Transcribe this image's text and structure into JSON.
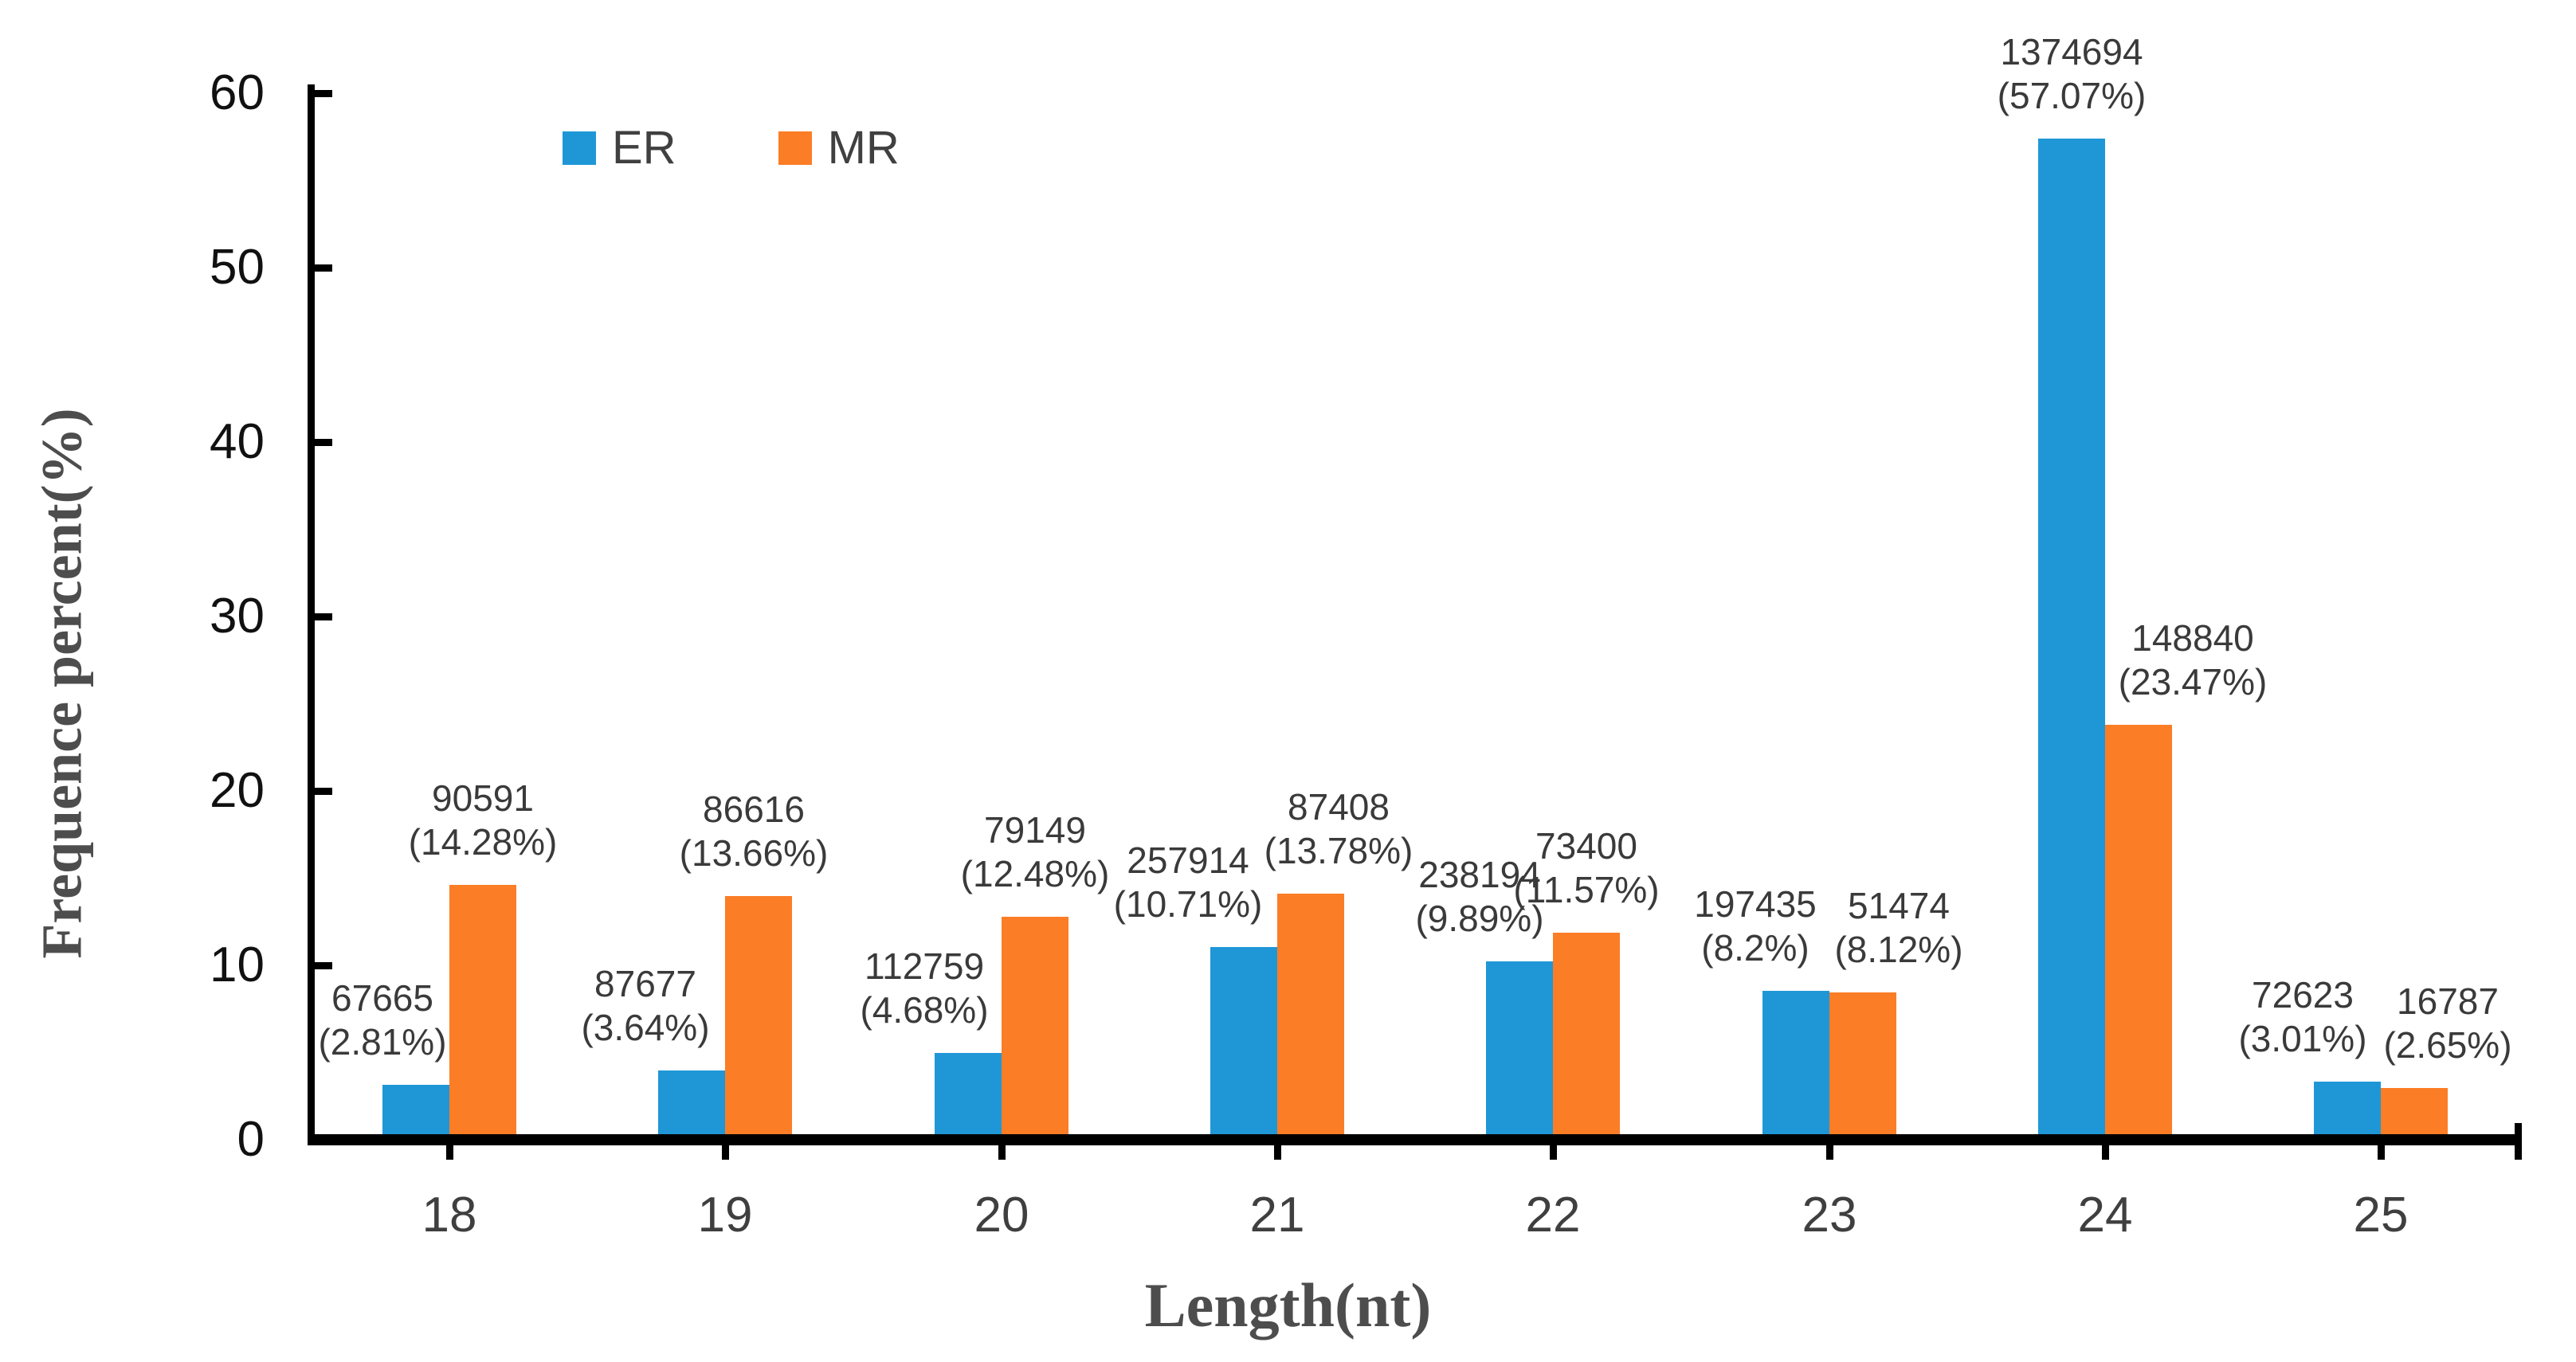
{
  "chart_data": {
    "type": "bar",
    "title": "",
    "xlabel": "Length(nt)",
    "ylabel": "Frequence percent(%)",
    "categories": [
      "18",
      "19",
      "20",
      "21",
      "22",
      "23",
      "24",
      "25"
    ],
    "series": [
      {
        "name": "ER",
        "color": "#1F97D7",
        "counts": [
          67665,
          87677,
          112759,
          257914,
          238194,
          197435,
          1374694,
          72623
        ],
        "percents": [
          2.81,
          3.64,
          4.68,
          10.71,
          9.89,
          8.2,
          57.07,
          3.01
        ]
      },
      {
        "name": "MR",
        "color": "#FB7D26",
        "counts": [
          90591,
          86616,
          79149,
          87408,
          73400,
          51474,
          148840,
          16787
        ],
        "percents": [
          14.28,
          13.66,
          12.48,
          13.78,
          11.57,
          8.12,
          23.47,
          2.65
        ]
      }
    ],
    "y_ticks": [
      0,
      10,
      20,
      30,
      40,
      50,
      60
    ],
    "ylim": [
      0,
      60
    ],
    "grid": false,
    "legend_position": "top-left-inside",
    "axis_color": "#000000",
    "background": "#ffffff"
  }
}
